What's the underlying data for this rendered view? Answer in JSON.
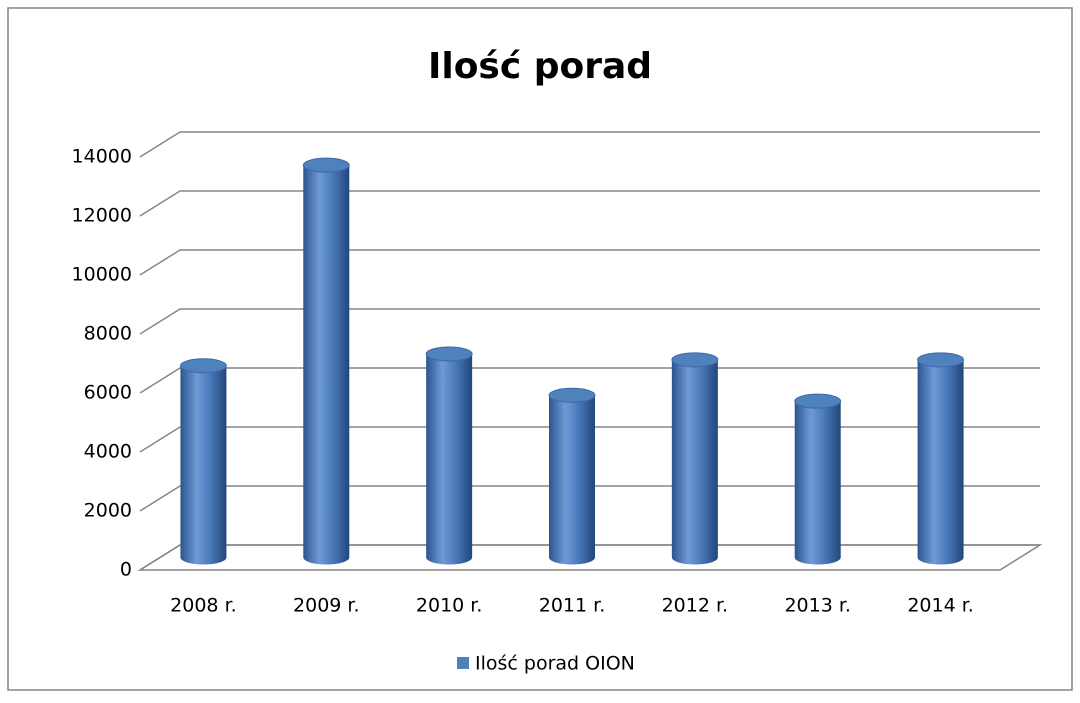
{
  "chart_data": {
    "type": "bar3d",
    "title": "Ilość porad",
    "categories": [
      "2008 r.",
      "2009 r.",
      "2010 r.",
      "2011 r.",
      "2012 r.",
      "2013 r.",
      "2014 r."
    ],
    "series": [
      {
        "name": "Ilość porad OION",
        "color": "#4f81bd",
        "values": [
          6500,
          13300,
          6900,
          5500,
          6700,
          5300,
          6700
        ]
      }
    ],
    "ylim": [
      0,
      14000
    ],
    "yticks": [
      0,
      2000,
      4000,
      6000,
      8000,
      10000,
      12000,
      14000
    ],
    "grid": true,
    "legend": "bottom"
  }
}
